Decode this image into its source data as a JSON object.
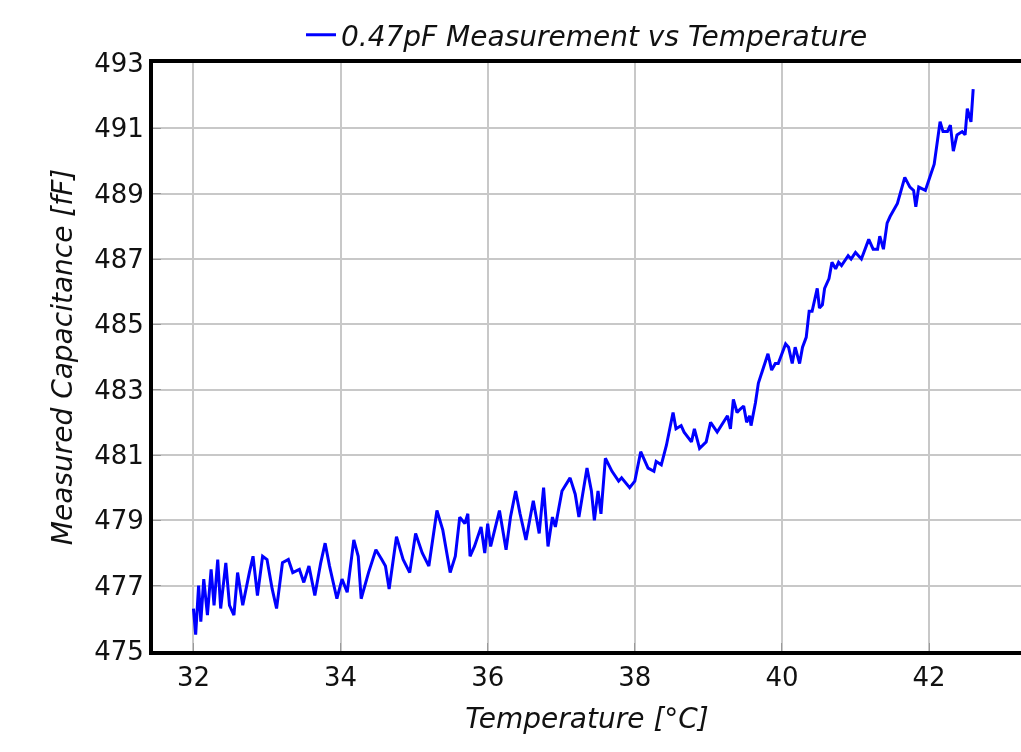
{
  "chart_data": {
    "type": "line",
    "xlabel": "Temperature [°C]",
    "ylabel": "Measured Capacitance [fF]",
    "xlim": [
      31.45,
      43.25
    ],
    "xticks": [
      32,
      34,
      36,
      38,
      40,
      42
    ],
    "ylim": [
      475,
      493
    ],
    "yticks": [
      475,
      477,
      479,
      481,
      483,
      485,
      487,
      489,
      491,
      493
    ],
    "grid": true,
    "legend": "top",
    "marker": "none",
    "line_style": "solid",
    "series": [
      {
        "name": "0.47pF Measurement vs Temperature",
        "color": "#0000ff",
        "x": [
          32.0,
          32.03,
          32.07,
          32.1,
          32.14,
          32.19,
          32.24,
          32.28,
          32.33,
          32.37,
          32.44,
          32.49,
          32.55,
          32.6,
          32.67,
          32.76,
          32.81,
          32.87,
          32.94,
          33.0,
          33.07,
          33.13,
          33.21,
          33.29,
          33.35,
          33.44,
          33.5,
          33.57,
          33.65,
          33.73,
          33.79,
          33.85,
          33.95,
          34.02,
          34.09,
          34.18,
          34.24,
          34.28,
          34.38,
          34.48,
          34.56,
          34.61,
          34.66,
          34.76,
          34.85,
          34.94,
          35.02,
          35.11,
          35.2,
          35.31,
          35.39,
          35.49,
          35.56,
          35.62,
          35.69,
          35.73,
          35.76,
          35.82,
          35.91,
          35.96,
          36.0,
          36.04,
          36.16,
          36.25,
          36.31,
          36.38,
          36.44,
          36.52,
          36.62,
          36.7,
          36.76,
          36.82,
          36.88,
          36.92,
          37.01,
          37.12,
          37.19,
          37.24,
          37.35,
          37.41,
          37.45,
          37.5,
          37.54,
          37.6,
          37.69,
          37.78,
          37.82,
          37.93,
          38.0,
          38.08,
          38.18,
          38.26,
          38.29,
          38.36,
          38.43,
          38.52,
          38.56,
          38.63,
          38.67,
          38.77,
          38.81,
          38.88,
          38.97,
          39.03,
          39.12,
          39.26,
          39.3,
          39.34,
          39.39,
          39.43,
          39.48,
          39.52,
          39.56,
          39.58,
          39.64,
          39.68,
          39.81,
          39.86,
          39.91,
          39.95,
          40.05,
          40.09,
          40.14,
          40.18,
          40.24,
          40.28,
          40.33,
          40.37,
          40.41,
          40.48,
          40.51,
          40.55,
          40.58,
          40.64,
          40.68,
          40.73,
          40.77,
          40.81,
          40.9,
          40.94,
          41.0,
          41.08,
          41.18,
          41.24,
          41.3,
          41.33,
          41.38,
          41.43,
          41.47,
          41.57,
          41.67,
          41.74,
          41.79,
          41.82,
          41.86,
          41.95,
          42.01,
          42.07,
          42.15,
          42.19,
          42.25,
          42.29,
          42.33,
          42.38,
          42.45,
          42.49,
          42.52,
          42.57,
          42.6
        ],
        "values": [
          476.3,
          475.5,
          477.0,
          475.9,
          477.2,
          476.1,
          477.5,
          476.4,
          477.8,
          476.3,
          477.7,
          476.4,
          476.1,
          477.4,
          476.4,
          477.4,
          477.9,
          476.7,
          477.9,
          477.8,
          476.9,
          476.3,
          477.7,
          477.8,
          477.4,
          477.5,
          477.1,
          477.6,
          476.7,
          477.7,
          478.3,
          477.6,
          476.6,
          477.2,
          476.8,
          478.4,
          477.9,
          476.6,
          477.4,
          478.1,
          477.8,
          477.6,
          476.9,
          478.5,
          477.8,
          477.4,
          478.6,
          478.0,
          477.6,
          479.3,
          478.7,
          477.4,
          477.9,
          479.1,
          478.9,
          479.2,
          477.9,
          478.2,
          478.8,
          478.0,
          478.9,
          478.2,
          479.3,
          478.1,
          479.1,
          479.9,
          479.2,
          478.4,
          479.6,
          478.6,
          480.0,
          478.2,
          479.1,
          478.8,
          479.9,
          480.3,
          479.8,
          479.1,
          480.6,
          479.9,
          479.0,
          479.9,
          479.2,
          480.9,
          480.5,
          480.2,
          480.3,
          480.0,
          480.2,
          481.1,
          480.6,
          480.5,
          480.8,
          480.7,
          481.3,
          482.3,
          481.8,
          481.9,
          481.7,
          481.4,
          481.8,
          481.2,
          481.4,
          482.0,
          481.7,
          482.2,
          481.8,
          482.7,
          482.3,
          482.4,
          482.5,
          482.0,
          482.2,
          481.9,
          482.6,
          483.2,
          484.1,
          483.6,
          483.8,
          483.8,
          484.4,
          484.3,
          483.8,
          484.3,
          483.8,
          484.3,
          484.6,
          485.4,
          485.4,
          486.1,
          485.5,
          485.6,
          486.1,
          486.4,
          486.9,
          486.7,
          486.9,
          486.8,
          487.1,
          487.0,
          487.2,
          487.0,
          487.6,
          487.3,
          487.3,
          487.7,
          487.3,
          488.1,
          488.3,
          488.7,
          489.5,
          489.2,
          489.1,
          488.6,
          489.2,
          489.1,
          489.5,
          489.9,
          491.2,
          490.9,
          490.9,
          491.1,
          490.3,
          490.8,
          490.9,
          490.8,
          491.6,
          491.2,
          492.2
        ]
      }
    ]
  }
}
